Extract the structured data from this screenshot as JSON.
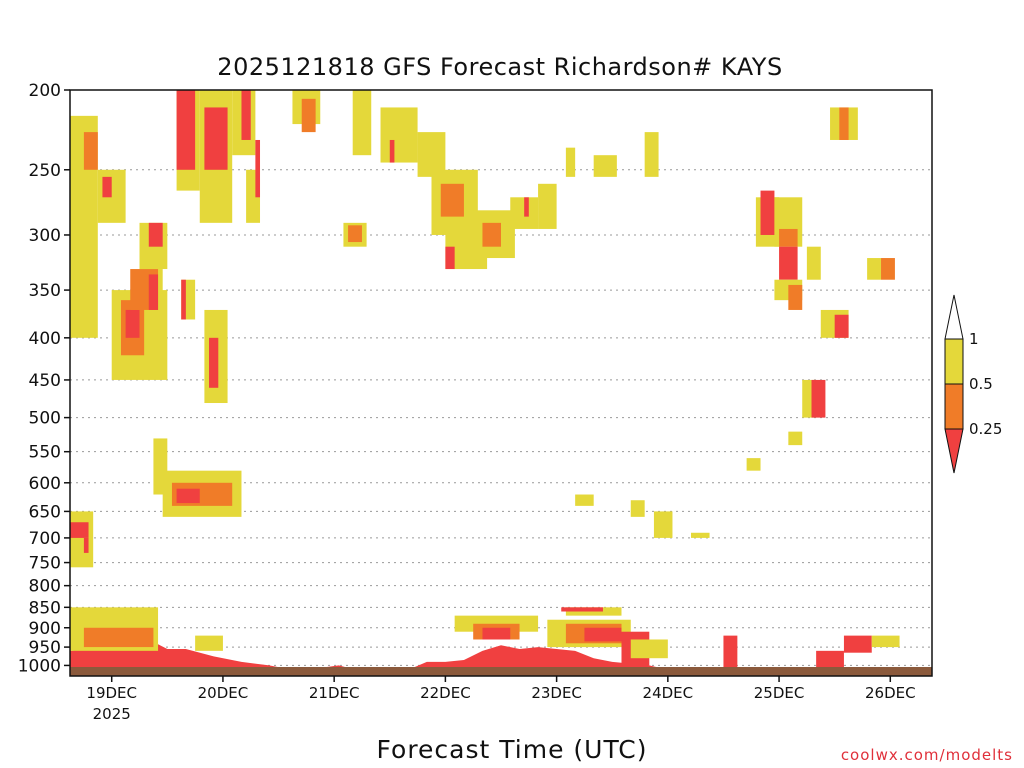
{
  "chart_data": {
    "type": "heatmap",
    "title": "2025121818 GFS Forecast Richardson# KAYS",
    "xlabel": "Forecast Time (UTC)",
    "ylabel": "",
    "credit": "coolwx.com/modelts",
    "y_axis": {
      "scale": "log-pressure",
      "inverted": true,
      "range": [
        1030,
        200
      ],
      "ticks": [
        200,
        250,
        300,
        350,
        400,
        450,
        500,
        550,
        600,
        650,
        700,
        750,
        800,
        850,
        900,
        950,
        1000
      ]
    },
    "x_axis": {
      "unit": "hours since 2025-12-18 18 UTC",
      "range": [
        -3,
        183
      ],
      "ticks": [
        {
          "label": "19DEC",
          "sublabel": "2025",
          "hour": 6
        },
        {
          "label": "20DEC",
          "hour": 30
        },
        {
          "label": "21DEC",
          "hour": 54
        },
        {
          "label": "22DEC",
          "hour": 78
        },
        {
          "label": "23DEC",
          "hour": 102
        },
        {
          "label": "24DEC",
          "hour": 126
        },
        {
          "label": "25DEC",
          "hour": 150
        },
        {
          "label": "26DEC",
          "hour": 174
        }
      ]
    },
    "grid": "dotted horizontal at pressure ticks",
    "colorbar": {
      "placement": "right",
      "levels": [
        {
          "range": "<0.25",
          "color": "#f04040"
        },
        {
          "range": "0.25-0.5",
          "color": "#f07c28"
        },
        {
          "range": "0.5-1",
          "color": "#e4d83a"
        },
        {
          "range": ">1",
          "color": "#ffffff"
        }
      ],
      "labels": [
        "1",
        "0.5",
        "0.25"
      ]
    },
    "colors": {
      "red": "#f04040",
      "orange": "#f07c28",
      "yellow": "#e4d83a",
      "ground": "#8b5a3c"
    },
    "regions": [
      {
        "v": "y",
        "h0": -3,
        "h1": 3,
        "p0": 215,
        "p1": 400
      },
      {
        "v": "o",
        "h0": 0,
        "h1": 3,
        "p0": 225,
        "p1": 250
      },
      {
        "v": "y",
        "h0": 3,
        "h1": 9,
        "p0": 250,
        "p1": 290
      },
      {
        "v": "r",
        "h0": 4,
        "h1": 6,
        "p0": 255,
        "p1": 270
      },
      {
        "v": "y",
        "h0": 6,
        "h1": 18,
        "p0": 350,
        "p1": 450
      },
      {
        "v": "o",
        "h0": 8,
        "h1": 13,
        "p0": 360,
        "p1": 420
      },
      {
        "v": "r",
        "h0": 9,
        "h1": 12,
        "p0": 370,
        "p1": 400
      },
      {
        "v": "y",
        "h0": 12,
        "h1": 17,
        "p0": 330,
        "p1": 360
      },
      {
        "v": "o",
        "h0": 10,
        "h1": 16,
        "p0": 330,
        "p1": 370
      },
      {
        "v": "r",
        "h0": 14,
        "h1": 16,
        "p0": 335,
        "p1": 370
      },
      {
        "v": "y",
        "h0": 12,
        "h1": 18,
        "p0": 290,
        "p1": 330
      },
      {
        "v": "r",
        "h0": 14,
        "h1": 17,
        "p0": 290,
        "p1": 310
      },
      {
        "v": "y",
        "h0": 20,
        "h1": 25,
        "p0": 200,
        "p1": 265
      },
      {
        "v": "r",
        "h0": 20,
        "h1": 24,
        "p0": 200,
        "p1": 250
      },
      {
        "v": "y",
        "h0": 25,
        "h1": 32,
        "p0": 200,
        "p1": 290
      },
      {
        "v": "r",
        "h0": 26,
        "h1": 31,
        "p0": 210,
        "p1": 250
      },
      {
        "v": "y",
        "h0": 32,
        "h1": 37,
        "p0": 200,
        "p1": 240
      },
      {
        "v": "r",
        "h0": 34,
        "h1": 36,
        "p0": 200,
        "p1": 230
      },
      {
        "v": "y",
        "h0": 35,
        "h1": 38,
        "p0": 250,
        "p1": 290
      },
      {
        "v": "r",
        "h0": 37,
        "h1": 38,
        "p0": 230,
        "p1": 270
      },
      {
        "v": "y",
        "h0": 21,
        "h1": 24,
        "p0": 340,
        "p1": 380
      },
      {
        "v": "r",
        "h0": 21,
        "h1": 22,
        "p0": 340,
        "p1": 380
      },
      {
        "v": "y",
        "h0": 26,
        "h1": 31,
        "p0": 370,
        "p1": 480
      },
      {
        "v": "r",
        "h0": 27,
        "h1": 29,
        "p0": 400,
        "p1": 460
      },
      {
        "v": "y",
        "h0": 15,
        "h1": 18,
        "p0": 530,
        "p1": 620
      },
      {
        "v": "y",
        "h0": 17,
        "h1": 34,
        "p0": 580,
        "p1": 660
      },
      {
        "v": "o",
        "h0": 19,
        "h1": 32,
        "p0": 600,
        "p1": 640
      },
      {
        "v": "r",
        "h0": 20,
        "h1": 25,
        "p0": 610,
        "p1": 635
      },
      {
        "v": "y",
        "h0": -3,
        "h1": 2,
        "p0": 650,
        "p1": 760
      },
      {
        "v": "r",
        "h0": -3,
        "h1": 1,
        "p0": 670,
        "p1": 700
      },
      {
        "v": "r",
        "h0": 0,
        "h1": 1,
        "p0": 700,
        "p1": 730
      },
      {
        "v": "y",
        "h0": 45,
        "h1": 51,
        "p0": 200,
        "p1": 220
      },
      {
        "v": "o",
        "h0": 47,
        "h1": 50,
        "p0": 205,
        "p1": 225
      },
      {
        "v": "y",
        "h0": 56,
        "h1": 61,
        "p0": 290,
        "p1": 310
      },
      {
        "v": "o",
        "h0": 57,
        "h1": 60,
        "p0": 292,
        "p1": 306
      },
      {
        "v": "y",
        "h0": 58,
        "h1": 62,
        "p0": 200,
        "p1": 240
      },
      {
        "v": "y",
        "h0": 64,
        "h1": 72,
        "p0": 210,
        "p1": 245
      },
      {
        "v": "r",
        "h0": 66,
        "h1": 67,
        "p0": 230,
        "p1": 245
      },
      {
        "v": "y",
        "h0": 72,
        "h1": 78,
        "p0": 225,
        "p1": 255
      },
      {
        "v": "y",
        "h0": 75,
        "h1": 85,
        "p0": 250,
        "p1": 300
      },
      {
        "v": "o",
        "h0": 77,
        "h1": 82,
        "p0": 260,
        "p1": 285
      },
      {
        "v": "y",
        "h0": 78,
        "h1": 87,
        "p0": 295,
        "p1": 330
      },
      {
        "v": "r",
        "h0": 78,
        "h1": 80,
        "p0": 310,
        "p1": 330
      },
      {
        "v": "y",
        "h0": 84,
        "h1": 93,
        "p0": 280,
        "p1": 320
      },
      {
        "v": "o",
        "h0": 86,
        "h1": 90,
        "p0": 290,
        "p1": 310
      },
      {
        "v": "y",
        "h0": 92,
        "h1": 98,
        "p0": 270,
        "p1": 295
      },
      {
        "v": "r",
        "h0": 95,
        "h1": 96,
        "p0": 270,
        "p1": 285
      },
      {
        "v": "y",
        "h0": 98,
        "h1": 102,
        "p0": 260,
        "p1": 295
      },
      {
        "v": "y",
        "h0": 104,
        "h1": 106,
        "p0": 235,
        "p1": 255
      },
      {
        "v": "y",
        "h0": 110,
        "h1": 115,
        "p0": 240,
        "p1": 255
      },
      {
        "v": "y",
        "h0": 121,
        "h1": 124,
        "p0": 225,
        "p1": 255
      },
      {
        "v": "y",
        "h0": 145,
        "h1": 150,
        "p0": 270,
        "p1": 310
      },
      {
        "v": "r",
        "h0": 146,
        "h1": 149,
        "p0": 265,
        "p1": 300
      },
      {
        "v": "y",
        "h0": 149,
        "h1": 155,
        "p0": 270,
        "p1": 310
      },
      {
        "v": "o",
        "h0": 150,
        "h1": 154,
        "p0": 295,
        "p1": 310
      },
      {
        "v": "r",
        "h0": 150,
        "h1": 154,
        "p0": 310,
        "p1": 340
      },
      {
        "v": "y",
        "h0": 149,
        "h1": 155,
        "p0": 340,
        "p1": 360
      },
      {
        "v": "o",
        "h0": 152,
        "h1": 155,
        "p0": 345,
        "p1": 370
      },
      {
        "v": "y",
        "h0": 156,
        "h1": 159,
        "p0": 310,
        "p1": 340
      },
      {
        "v": "y",
        "h0": 161,
        "h1": 167,
        "p0": 210,
        "p1": 230
      },
      {
        "v": "o",
        "h0": 163,
        "h1": 165,
        "p0": 210,
        "p1": 230
      },
      {
        "v": "y",
        "h0": 159,
        "h1": 165,
        "p0": 370,
        "p1": 400
      },
      {
        "v": "r",
        "h0": 162,
        "h1": 165,
        "p0": 375,
        "p1": 400
      },
      {
        "v": "y",
        "h0": 169,
        "h1": 172,
        "p0": 320,
        "p1": 340
      },
      {
        "v": "o",
        "h0": 172,
        "h1": 175,
        "p0": 320,
        "p1": 340
      },
      {
        "v": "y",
        "h0": 155,
        "h1": 158,
        "p0": 450,
        "p1": 500
      },
      {
        "v": "r",
        "h0": 157,
        "h1": 160,
        "p0": 450,
        "p1": 500
      },
      {
        "v": "y",
        "h0": 123,
        "h1": 127,
        "p0": 650,
        "p1": 700
      },
      {
        "v": "y",
        "h0": 131,
        "h1": 135,
        "p0": 690,
        "p1": 700
      },
      {
        "v": "y",
        "h0": 152,
        "h1": 155,
        "p0": 520,
        "p1": 540
      },
      {
        "v": "y",
        "h0": 143,
        "h1": 146,
        "p0": 560,
        "p1": 580
      },
      {
        "v": "y",
        "h0": 118,
        "h1": 121,
        "p0": 630,
        "p1": 660
      },
      {
        "v": "y",
        "h0": 106,
        "h1": 110,
        "p0": 620,
        "p1": 640
      },
      {
        "v": "y",
        "h0": 80,
        "h1": 98,
        "p0": 870,
        "p1": 910
      },
      {
        "v": "o",
        "h0": 84,
        "h1": 94,
        "p0": 890,
        "p1": 930
      },
      {
        "v": "r",
        "h0": 86,
        "h1": 92,
        "p0": 900,
        "p1": 930
      },
      {
        "v": "y",
        "h0": 104,
        "h1": 116,
        "p0": 850,
        "p1": 870
      },
      {
        "v": "r",
        "h0": 103,
        "h1": 112,
        "p0": 850,
        "p1": 860
      },
      {
        "v": "y",
        "h0": 100,
        "h1": 118,
        "p0": 880,
        "p1": 950
      },
      {
        "v": "o",
        "h0": 104,
        "h1": 116,
        "p0": 890,
        "p1": 940
      },
      {
        "v": "r",
        "h0": 108,
        "h1": 116,
        "p0": 900,
        "p1": 935
      },
      {
        "v": "r",
        "h0": 116,
        "h1": 122,
        "p0": 910,
        "p1": 1000
      },
      {
        "v": "y",
        "h0": 118,
        "h1": 126,
        "p0": 930,
        "p1": 980
      },
      {
        "v": "r",
        "h0": 158,
        "h1": 164,
        "p0": 960,
        "p1": 1010
      },
      {
        "v": "r",
        "h0": 164,
        "h1": 170,
        "p0": 920,
        "p1": 965
      },
      {
        "v": "y",
        "h0": 170,
        "h1": 176,
        "p0": 920,
        "p1": 950
      },
      {
        "v": "r",
        "h0": 138,
        "h1": 141,
        "p0": 920,
        "p1": 1010
      },
      {
        "v": "y",
        "h0": -3,
        "h1": 16,
        "p0": 850,
        "p1": 960
      },
      {
        "v": "o",
        "h0": 0,
        "h1": 15,
        "p0": 900,
        "p1": 950
      },
      {
        "v": "y",
        "h0": 24,
        "h1": 30,
        "p0": 920,
        "p1": 960
      }
    ],
    "boundary_layer": [
      {
        "h": -3,
        "p": 960
      },
      {
        "h": 2,
        "p": 955
      },
      {
        "h": 6,
        "p": 935
      },
      {
        "h": 10,
        "p": 940
      },
      {
        "h": 14,
        "p": 930
      },
      {
        "h": 18,
        "p": 955
      },
      {
        "h": 22,
        "p": 955
      },
      {
        "h": 28,
        "p": 975
      },
      {
        "h": 34,
        "p": 990
      },
      {
        "h": 40,
        "p": 1000
      },
      {
        "h": 46,
        "p": 1015
      },
      {
        "h": 52,
        "p": 1005
      },
      {
        "h": 55,
        "p": 1000
      },
      {
        "h": 58,
        "p": 1010
      },
      {
        "h": 64,
        "p": 1015
      },
      {
        "h": 70,
        "p": 1012
      },
      {
        "h": 74,
        "p": 990
      },
      {
        "h": 78,
        "p": 990
      },
      {
        "h": 82,
        "p": 985
      },
      {
        "h": 86,
        "p": 960
      },
      {
        "h": 90,
        "p": 945
      },
      {
        "h": 94,
        "p": 955
      },
      {
        "h": 98,
        "p": 950
      },
      {
        "h": 102,
        "p": 955
      },
      {
        "h": 106,
        "p": 960
      },
      {
        "h": 110,
        "p": 980
      },
      {
        "h": 114,
        "p": 990
      },
      {
        "h": 118,
        "p": 995
      },
      {
        "h": 122,
        "p": 1000
      },
      {
        "h": 126,
        "p": 1012
      },
      {
        "h": 140,
        "p": 1016
      },
      {
        "h": 160,
        "p": 1012
      },
      {
        "h": 176,
        "p": 1008
      },
      {
        "h": 183,
        "p": 1010
      }
    ]
  }
}
